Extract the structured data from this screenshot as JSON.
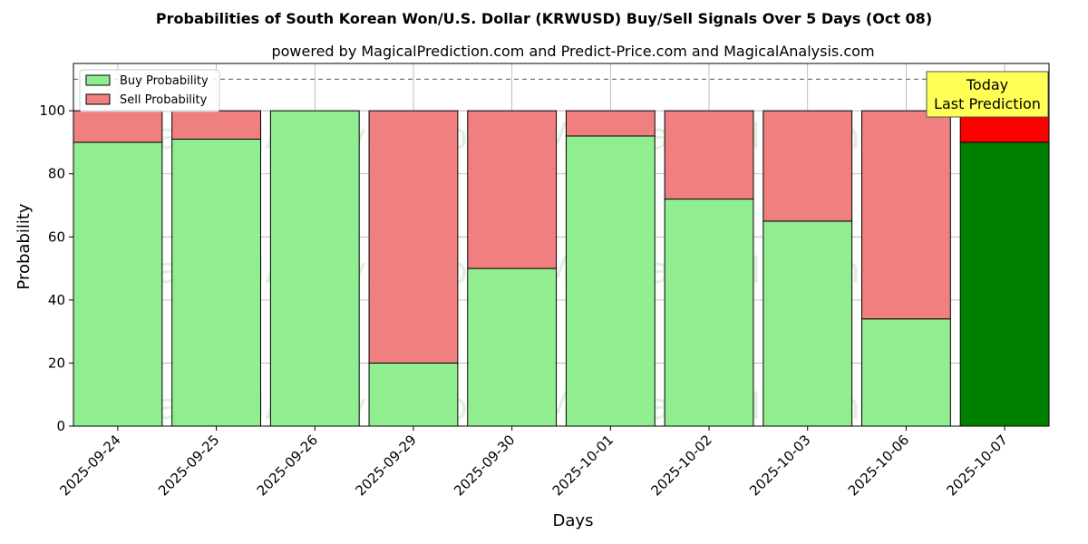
{
  "chart_data": {
    "type": "bar",
    "stacked": true,
    "title": "Probabilities of South Korean Won/U.S. Dollar (KRWUSD) Buy/Sell Signals Over 5 Days (Oct 08)",
    "subtitle": "powered by MagicalPrediction.com and Predict-Price.com and MagicalAnalysis.com",
    "xlabel": "Days",
    "ylabel": "Probability",
    "ylim": [
      0,
      115
    ],
    "yticks": [
      "0",
      "20",
      "40",
      "60",
      "80",
      "100"
    ],
    "categories": [
      "2025-09-24",
      "2025-09-25",
      "2025-09-26",
      "2025-09-29",
      "2025-09-30",
      "2025-10-01",
      "2025-10-02",
      "2025-10-03",
      "2025-10-06",
      "2025-10-07"
    ],
    "series": [
      {
        "name": "Buy Probability",
        "values": [
          90,
          91,
          100,
          20,
          50,
          92,
          72,
          65,
          34,
          90
        ],
        "color": "#90ee90",
        "highlight_color": "#008000"
      },
      {
        "name": "Sell Probability",
        "values": [
          10,
          9,
          0,
          80,
          50,
          8,
          28,
          35,
          66,
          10
        ],
        "color": "#f08080",
        "highlight_color": "#ff0000"
      }
    ],
    "highlight_index": 9,
    "reference_line": 110,
    "grid": true,
    "legend_position": "top-left",
    "annotation": {
      "line1": "Today",
      "line2": "Last Prediction",
      "background": "#ffff55"
    },
    "watermarks": [
      "MagicalAnalysis.com",
      "MagicalPrediction.com"
    ]
  }
}
